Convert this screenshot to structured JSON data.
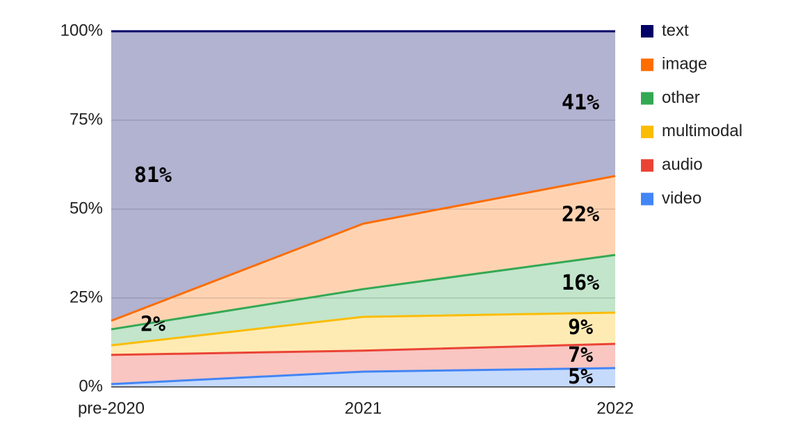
{
  "chart_data": {
    "type": "stacked-area-100",
    "categories": [
      "pre-2020",
      "2021",
      "2022"
    ],
    "ylim": [
      0,
      100
    ],
    "yticks": [
      {
        "value": 0,
        "label": "0%"
      },
      {
        "value": 25,
        "label": "25%"
      },
      {
        "value": 50,
        "label": "50%"
      },
      {
        "value": 75,
        "label": "75%"
      },
      {
        "value": 100,
        "label": "100%"
      }
    ],
    "grid": true,
    "legend": "right",
    "series": [
      {
        "name": "video",
        "color": "#4285f4",
        "values": [
          0.8,
          4.3,
          5.3
        ],
        "value_labels": [
          null,
          null,
          "5%"
        ]
      },
      {
        "name": "audio",
        "color": "#ea4335",
        "values": [
          8.2,
          5.9,
          6.8
        ],
        "value_labels": [
          null,
          null,
          "7%"
        ]
      },
      {
        "name": "multimodal",
        "color": "#fbbc04",
        "values": [
          2.7,
          9.5,
          8.8
        ],
        "value_labels": [
          null,
          null,
          "9%"
        ]
      },
      {
        "name": "other",
        "color": "#34a853",
        "values": [
          4.5,
          7.8,
          16.2
        ],
        "value_labels": [
          null,
          null,
          "16%"
        ]
      },
      {
        "name": "image",
        "color": "#ff6d01",
        "values": [
          2.4,
          18.4,
          22.2
        ],
        "value_labels": [
          "2%",
          null,
          "22%"
        ]
      },
      {
        "name": "text",
        "color": "#000066",
        "values": [
          81.4,
          54.1,
          40.7
        ],
        "value_labels": [
          "81%",
          null,
          "41%"
        ]
      }
    ]
  }
}
